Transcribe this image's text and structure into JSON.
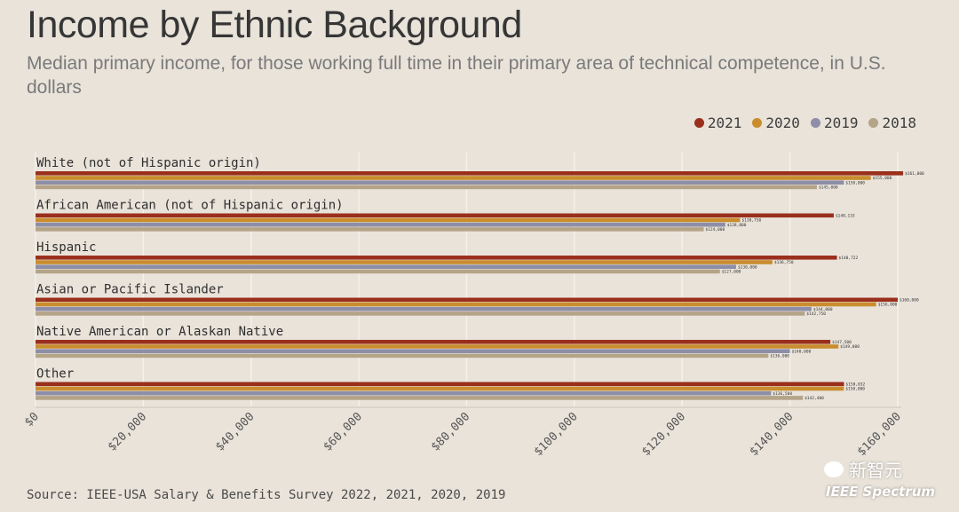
{
  "title": "Income by Ethnic Background",
  "subtitle": "Median primary income, for those working full time in their primary area of technical competence, in U.S. dollars",
  "source": "Source: IEEE-USA Salary & Benefits Survey 2022, 2021, 2020, 2019",
  "watermark": "新智元",
  "brand": "IEEE Spectrum",
  "chart_data": {
    "type": "bar",
    "orientation": "horizontal",
    "title": "Income by Ethnic Background",
    "xlim": [
      0,
      160000
    ],
    "ticks": [
      0,
      20000,
      40000,
      60000,
      80000,
      100000,
      120000,
      140000,
      160000
    ],
    "tick_labels": [
      "$0",
      "$20,000",
      "$40,000",
      "$60,000",
      "$80,000",
      "$100,000",
      "$120,000",
      "$140,000",
      "$160,000"
    ],
    "legend_position": "top-right",
    "series": [
      {
        "name": "2021",
        "color": "#9a2f1c"
      },
      {
        "name": "2020",
        "color": "#c98d2e"
      },
      {
        "name": "2019",
        "color": "#8d8ea8"
      },
      {
        "name": "2018",
        "color": "#b4a488"
      }
    ],
    "categories": [
      {
        "label": "White (not of Hispanic origin)",
        "values": [
          161000,
          155000,
          150000,
          145000
        ],
        "value_labels": [
          "$161,000",
          "$155,000",
          "$150,000",
          "$145,000"
        ]
      },
      {
        "label": "African American (not of Hispanic origin)",
        "values": [
          148133,
          130750,
          128000,
          124000
        ],
        "value_labels": [
          "$148,133",
          "$130,750",
          "$128,000",
          "$124,000"
        ]
      },
      {
        "label": "Hispanic",
        "values": [
          148722,
          136750,
          130000,
          127000
        ],
        "value_labels": [
          "$148,722",
          "$136,750",
          "$130,000",
          "$127,000"
        ]
      },
      {
        "label": "Asian or Pacific Islander",
        "values": [
          160000,
          156000,
          144000,
          142750
        ],
        "value_labels": [
          "$160,000",
          "$156,000",
          "$144,000",
          "$142,750"
        ]
      },
      {
        "label": "Native American or Alaskan Native",
        "values": [
          147500,
          149000,
          140000,
          136000
        ],
        "value_labels": [
          "$147,500",
          "$149,000",
          "$140,000",
          "$136,000"
        ]
      },
      {
        "label": "Other",
        "values": [
          150032,
          150000,
          136500,
          142400
        ],
        "value_labels": [
          "$150,032",
          "$150,000",
          "$136,500",
          "$142,400"
        ]
      }
    ]
  }
}
